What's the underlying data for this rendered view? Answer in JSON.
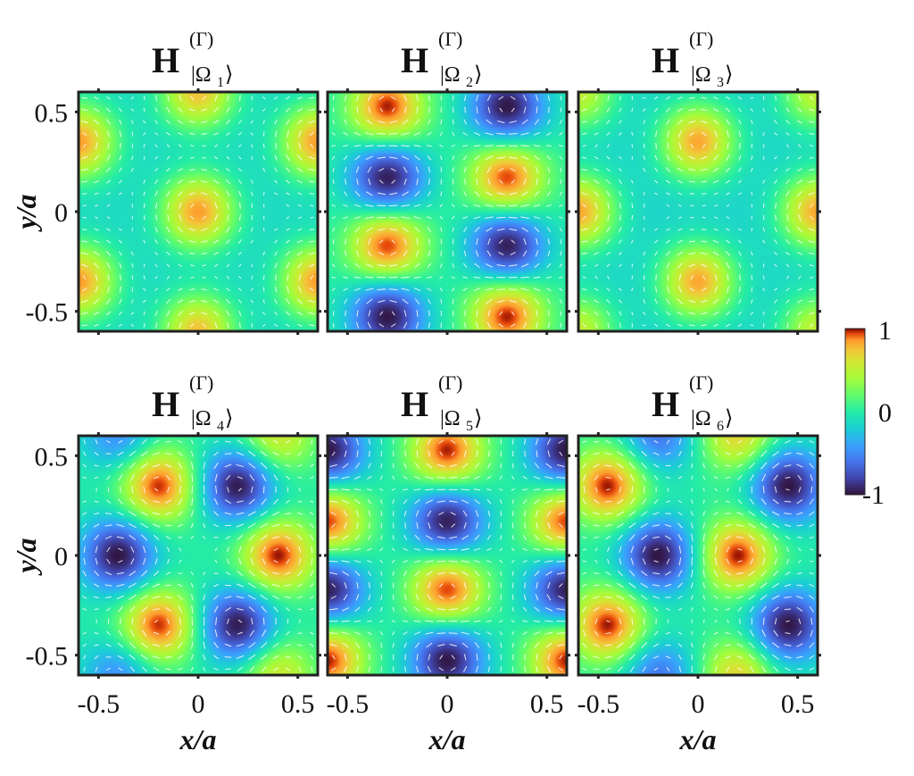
{
  "chart_data": {
    "type": "heatmap",
    "description_type": "field-map-grid",
    "xlabel": "x/a",
    "ylabel": "y/a",
    "xlim": [
      -0.6,
      0.6
    ],
    "ylim": [
      -0.6,
      0.6
    ],
    "xticks": [
      "-0.5",
      "0",
      "0.5"
    ],
    "yticks": [
      "0.5",
      "0",
      "-0.5"
    ],
    "colorbar": {
      "min": -1,
      "max": 1,
      "ticks": [
        "1",
        "0",
        "-1"
      ],
      "colormap": "turbo"
    },
    "panels": [
      {
        "title_main": "H",
        "title_sup": "(Γ)",
        "title_sub": "|Ω",
        "title_idx": "1",
        "title_close": "⟩",
        "peaks": [
          {
            "x": 0.0,
            "y": 0.0,
            "v": 1
          },
          {
            "x": -0.6,
            "y": 0.35,
            "v": 1
          },
          {
            "x": 0.6,
            "y": 0.35,
            "v": 1
          },
          {
            "x": -0.6,
            "y": -0.35,
            "v": 1
          },
          {
            "x": 0.6,
            "y": -0.35,
            "v": 1
          },
          {
            "x": 0.0,
            "y": 0.6,
            "v": 0.9
          },
          {
            "x": 0.0,
            "y": -0.6,
            "v": 0.9
          }
        ],
        "base": -0.3
      },
      {
        "title_main": "H",
        "title_sup": "(Γ)",
        "title_sub": "|Ω",
        "title_idx": "2",
        "title_close": "⟩",
        "peaks": [
          {
            "x": -0.3,
            "y": 0.52,
            "v": 1
          },
          {
            "x": 0.3,
            "y": 0.52,
            "v": -1
          },
          {
            "x": -0.3,
            "y": 0.17,
            "v": -1
          },
          {
            "x": 0.3,
            "y": 0.17,
            "v": 1
          },
          {
            "x": -0.3,
            "y": -0.17,
            "v": 1
          },
          {
            "x": 0.3,
            "y": -0.17,
            "v": -1
          },
          {
            "x": -0.3,
            "y": -0.52,
            "v": -1
          },
          {
            "x": 0.3,
            "y": -0.52,
            "v": 1
          }
        ],
        "base": 0
      },
      {
        "title_main": "H",
        "title_sup": "(Γ)",
        "title_sub": "|Ω",
        "title_idx": "3",
        "title_close": "⟩",
        "peaks": [
          {
            "x": 0.0,
            "y": 0.35,
            "v": 1
          },
          {
            "x": 0.0,
            "y": -0.35,
            "v": 1
          },
          {
            "x": -0.6,
            "y": 0.0,
            "v": 1
          },
          {
            "x": 0.6,
            "y": 0.0,
            "v": 1
          },
          {
            "x": -0.6,
            "y": 0.6,
            "v": 0.7
          },
          {
            "x": 0.6,
            "y": 0.6,
            "v": 0.7
          },
          {
            "x": -0.6,
            "y": -0.6,
            "v": 0.7
          },
          {
            "x": 0.6,
            "y": -0.6,
            "v": 0.7
          }
        ],
        "base": -0.35
      },
      {
        "title_main": "H",
        "title_sup": "(Γ)",
        "title_sub": "|Ω",
        "title_idx": "4",
        "title_close": "⟩",
        "peaks": [
          {
            "x": -0.2,
            "y": 0.35,
            "v": 1
          },
          {
            "x": 0.2,
            "y": 0.35,
            "v": -1
          },
          {
            "x": -0.4,
            "y": 0.0,
            "v": -1
          },
          {
            "x": 0.4,
            "y": 0.0,
            "v": 1
          },
          {
            "x": -0.2,
            "y": -0.35,
            "v": 1
          },
          {
            "x": 0.2,
            "y": -0.35,
            "v": -1
          },
          {
            "x": -0.4,
            "y": 0.6,
            "v": -0.5
          },
          {
            "x": 0.4,
            "y": 0.6,
            "v": 0.6
          },
          {
            "x": -0.4,
            "y": -0.6,
            "v": -0.5
          },
          {
            "x": 0.4,
            "y": -0.6,
            "v": 0.6
          }
        ],
        "base": 0
      },
      {
        "title_main": "H",
        "title_sup": "(Γ)",
        "title_sub": "|Ω",
        "title_idx": "5",
        "title_close": "⟩",
        "peaks": [
          {
            "x": 0.0,
            "y": 0.52,
            "v": 1
          },
          {
            "x": -0.6,
            "y": 0.52,
            "v": -1
          },
          {
            "x": 0.6,
            "y": 0.52,
            "v": -1
          },
          {
            "x": 0.0,
            "y": 0.17,
            "v": -1
          },
          {
            "x": -0.6,
            "y": 0.17,
            "v": 1
          },
          {
            "x": 0.6,
            "y": 0.17,
            "v": 1
          },
          {
            "x": 0.0,
            "y": -0.17,
            "v": 1
          },
          {
            "x": -0.6,
            "y": -0.17,
            "v": -1
          },
          {
            "x": 0.6,
            "y": -0.17,
            "v": -1
          },
          {
            "x": 0.0,
            "y": -0.52,
            "v": -1
          },
          {
            "x": -0.6,
            "y": -0.52,
            "v": 1
          },
          {
            "x": 0.6,
            "y": -0.52,
            "v": 1
          }
        ],
        "base": 0
      },
      {
        "title_main": "H",
        "title_sup": "(Γ)",
        "title_sub": "|Ω",
        "title_idx": "6",
        "title_close": "⟩",
        "peaks": [
          {
            "x": -0.45,
            "y": 0.35,
            "v": 1
          },
          {
            "x": 0.45,
            "y": 0.35,
            "v": -1
          },
          {
            "x": -0.2,
            "y": 0.0,
            "v": -1
          },
          {
            "x": 0.2,
            "y": 0.0,
            "v": 1
          },
          {
            "x": -0.45,
            "y": -0.35,
            "v": 1
          },
          {
            "x": 0.45,
            "y": -0.35,
            "v": -1
          },
          {
            "x": -0.2,
            "y": 0.6,
            "v": -0.6
          },
          {
            "x": 0.2,
            "y": 0.6,
            "v": 0.7
          },
          {
            "x": -0.2,
            "y": -0.6,
            "v": -0.6
          },
          {
            "x": 0.2,
            "y": -0.6,
            "v": 0.7
          }
        ],
        "base": 0
      }
    ]
  }
}
